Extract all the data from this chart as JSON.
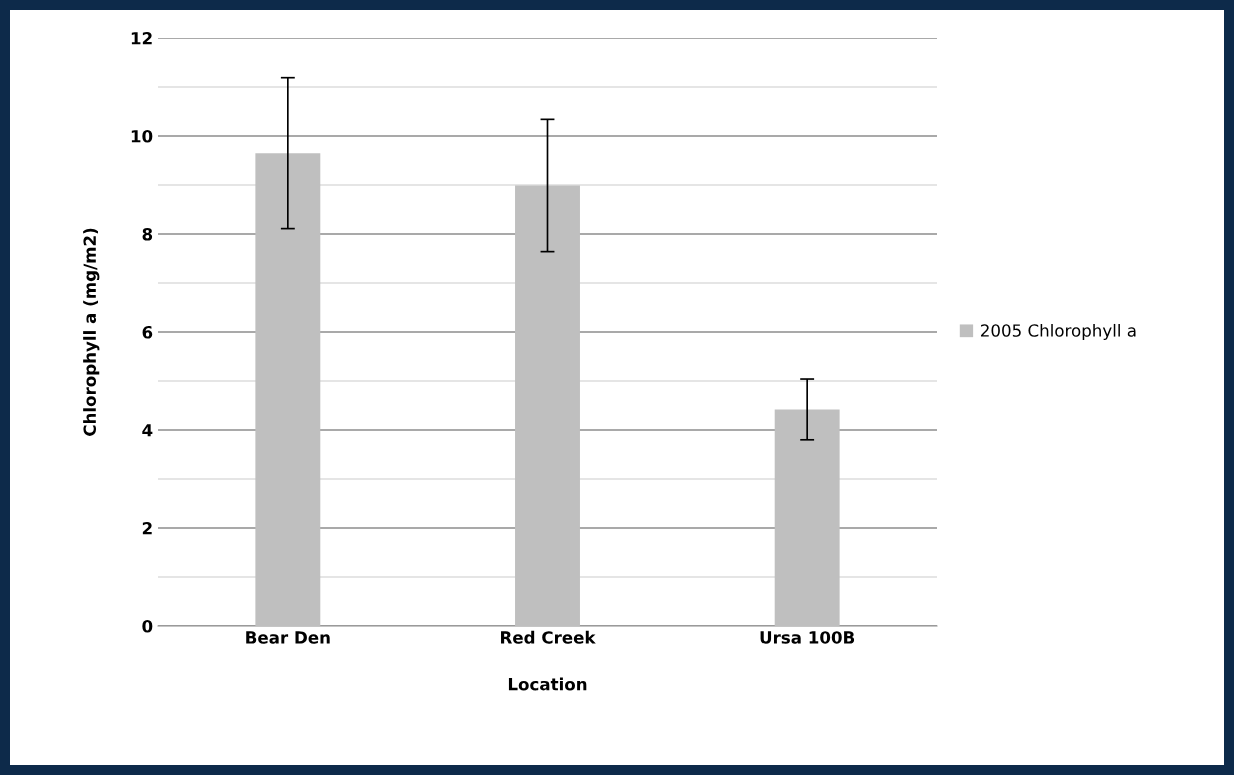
{
  "chart_data": {
    "type": "bar",
    "xlabel": "Location",
    "ylabel": "Chlorophyll a (mg/m2)",
    "categories": [
      "Bear Den",
      "Red Creek",
      "Ursa 100B"
    ],
    "series": [
      {
        "name": "2005 Chlorophyll a",
        "color": "#bfbfbf",
        "values": [
          9.65,
          8.99,
          4.42
        ],
        "errors": [
          1.54,
          1.35,
          0.62
        ]
      }
    ],
    "ylim": [
      0,
      12
    ],
    "yticks": [
      0,
      {
        "value": 1,
        "label": null
      },
      2,
      {
        "value": 3,
        "label": null
      },
      4,
      {
        "value": 5,
        "label": null
      },
      6,
      {
        "value": 7,
        "label": null
      },
      8,
      {
        "value": 9,
        "label": null
      },
      10,
      {
        "value": 11,
        "label": null
      },
      12
    ],
    "grid": "y",
    "legend": "right"
  }
}
